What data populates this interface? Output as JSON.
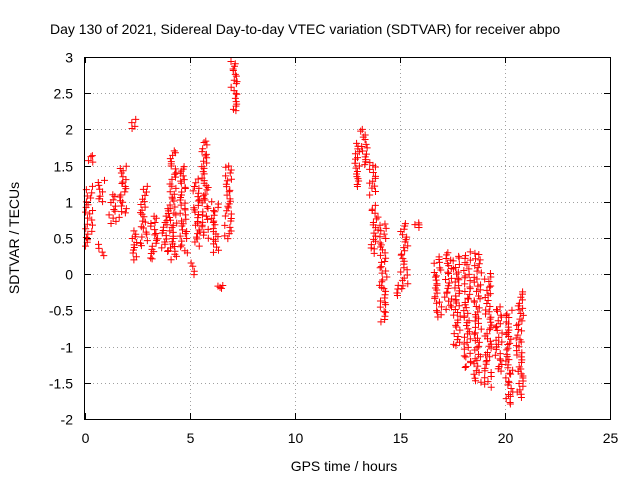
{
  "chart_data": {
    "type": "scatter",
    "title": "Day 130 of 2021, Sidereal Day-to-day VTEC variation (SDTVAR) for receiver abpo",
    "xlabel": "GPS time / hours",
    "ylabel": "SDTVAR / TECUs",
    "xlim": [
      0,
      25
    ],
    "ylim": [
      -2,
      3
    ],
    "xticks": [
      0,
      5,
      10,
      15,
      20,
      25
    ],
    "yticks": [
      -2,
      -1.5,
      -1,
      -0.5,
      0,
      0.5,
      1,
      1.5,
      2,
      2.5,
      3
    ],
    "xtick_labels": [
      "0",
      "5",
      "10",
      "15",
      "20",
      "25"
    ],
    "ytick_labels": [
      "-2",
      "-1.5",
      "-1",
      "-0.5",
      "0",
      "0.5",
      "1",
      "1.5",
      "2",
      "2.5",
      "3"
    ],
    "grid": true,
    "marker": "+",
    "color": "#ff0000",
    "clusters": [
      {
        "x": 0.2,
        "y_min": 0.4,
        "y_max": 1.2
      },
      {
        "x": 0.3,
        "y_min": 1.55,
        "y_max": 1.65
      },
      {
        "x": 0.75,
        "y_min": 0.25,
        "y_max": 0.4
      },
      {
        "x": 0.8,
        "y_min": 1.0,
        "y_max": 1.3
      },
      {
        "x": 1.3,
        "y_min": 0.7,
        "y_max": 1.1
      },
      {
        "x": 1.8,
        "y_min": 0.8,
        "y_max": 1.5
      },
      {
        "x": 2.3,
        "y_min": 2.0,
        "y_max": 2.15
      },
      {
        "x": 2.35,
        "y_min": 0.2,
        "y_max": 0.6
      },
      {
        "x": 2.8,
        "y_min": 0.4,
        "y_max": 1.2
      },
      {
        "x": 3.3,
        "y_min": 0.2,
        "y_max": 0.8
      },
      {
        "x": 3.8,
        "y_min": 0.3,
        "y_max": 0.9
      },
      {
        "x": 4.2,
        "y_min": 0.2,
        "y_max": 1.7
      },
      {
        "x": 4.7,
        "y_min": 0.3,
        "y_max": 1.5
      },
      {
        "x": 5.2,
        "y_min": 0.0,
        "y_max": 0.15
      },
      {
        "x": 5.3,
        "y_min": 0.4,
        "y_max": 1.3
      },
      {
        "x": 5.7,
        "y_min": 0.5,
        "y_max": 1.85
      },
      {
        "x": 6.2,
        "y_min": 0.3,
        "y_max": 1.0
      },
      {
        "x": 6.4,
        "y_min": -0.2,
        "y_max": -0.15
      },
      {
        "x": 6.8,
        "y_min": 0.5,
        "y_max": 1.5
      },
      {
        "x": 7.1,
        "y_min": 2.25,
        "y_max": 2.95
      },
      {
        "x": 12.9,
        "y_min": 1.2,
        "y_max": 1.8
      },
      {
        "x": 13.3,
        "y_min": 1.5,
        "y_max": 2.0
      },
      {
        "x": 13.7,
        "y_min": 1.1,
        "y_max": 1.55
      },
      {
        "x": 13.8,
        "y_min": 0.3,
        "y_max": 0.95
      },
      {
        "x": 14.2,
        "y_min": -0.65,
        "y_max": 0.7
      },
      {
        "x": 14.8,
        "y_min": -0.3,
        "y_max": -0.15
      },
      {
        "x": 15.2,
        "y_min": -0.2,
        "y_max": 0.7
      },
      {
        "x": 15.8,
        "y_min": 0.65,
        "y_max": 0.7
      },
      {
        "x": 16.8,
        "y_min": -0.6,
        "y_max": 0.25
      },
      {
        "x": 17.3,
        "y_min": -0.5,
        "y_max": 0.3
      },
      {
        "x": 17.7,
        "y_min": -1.0,
        "y_max": 0.25
      },
      {
        "x": 18.2,
        "y_min": -1.3,
        "y_max": 0.3
      },
      {
        "x": 18.7,
        "y_min": -1.5,
        "y_max": 0.3
      },
      {
        "x": 19.2,
        "y_min": -1.55,
        "y_max": 0.0
      },
      {
        "x": 19.7,
        "y_min": -1.35,
        "y_max": -0.45
      },
      {
        "x": 20.2,
        "y_min": -1.8,
        "y_max": -0.5
      },
      {
        "x": 20.7,
        "y_min": -1.7,
        "y_max": -0.25
      }
    ]
  }
}
